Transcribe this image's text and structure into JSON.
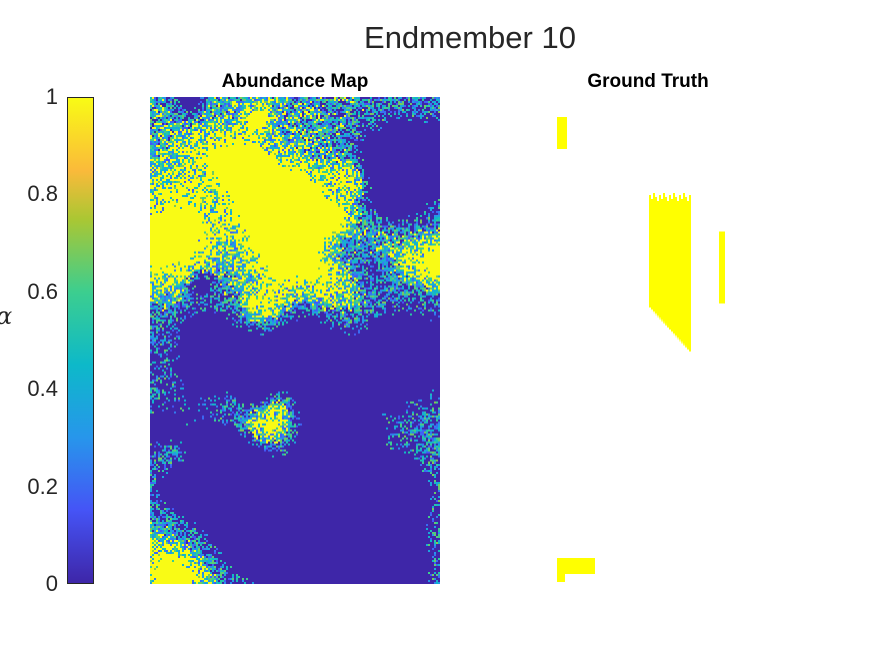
{
  "chart_data": {
    "type": "heatmap",
    "title": "Endmember 10",
    "panels": [
      {
        "title": "Abundance Map"
      },
      {
        "title": "Ground Truth"
      }
    ],
    "colorbar": {
      "label": "α",
      "range": [
        0,
        1
      ],
      "ticks": [
        "0",
        "0.2",
        "0.4",
        "0.6",
        "0.8",
        "1"
      ],
      "colormap": "parula"
    },
    "grid": false
  },
  "colors": {
    "low": "#3e26a8",
    "high": "#f9fb15",
    "ground_truth": "#ffff00",
    "background": "#ffffff"
  }
}
